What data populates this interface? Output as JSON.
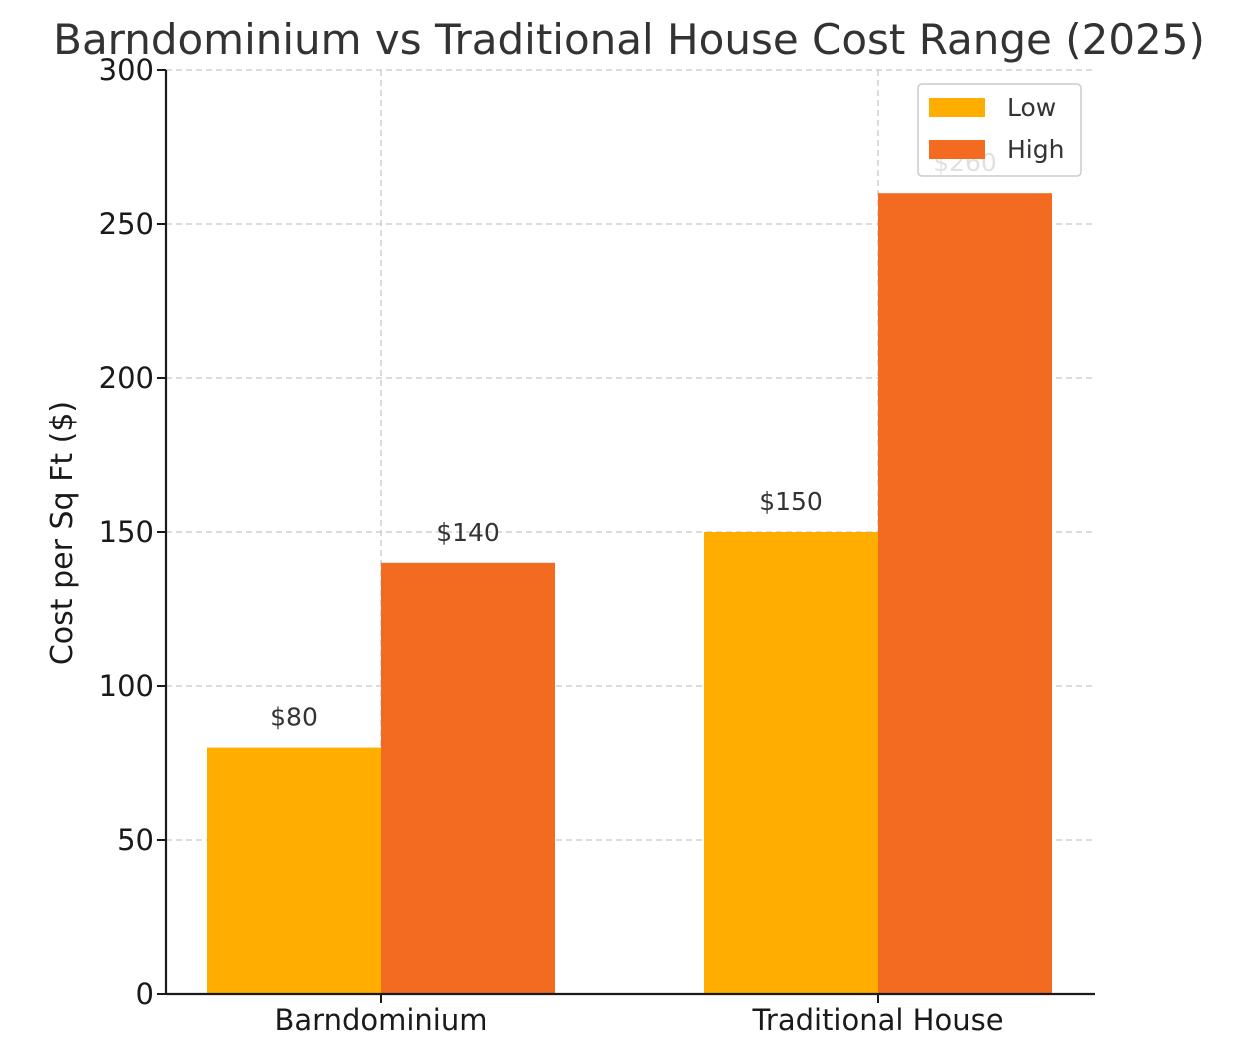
{
  "chart_data": {
    "type": "bar",
    "title": "Barndominium vs Traditional House Cost Range (2025)",
    "xlabel": "",
    "ylabel": "Cost per Sq Ft ($)",
    "categories": [
      "Barndominium",
      "Traditional House"
    ],
    "series": [
      {
        "name": "Low",
        "color": "#FFAE00",
        "values": [
          80,
          150
        ],
        "labels": [
          "$80",
          "$150"
        ]
      },
      {
        "name": "High",
        "color": "#F26B21",
        "values": [
          140,
          260
        ],
        "labels": [
          "$140",
          "$260"
        ]
      }
    ],
    "ylim": [
      0,
      300
    ],
    "yticks": [
      0,
      50,
      100,
      150,
      200,
      250,
      300
    ],
    "grid": true,
    "legend_position": "top-right"
  }
}
